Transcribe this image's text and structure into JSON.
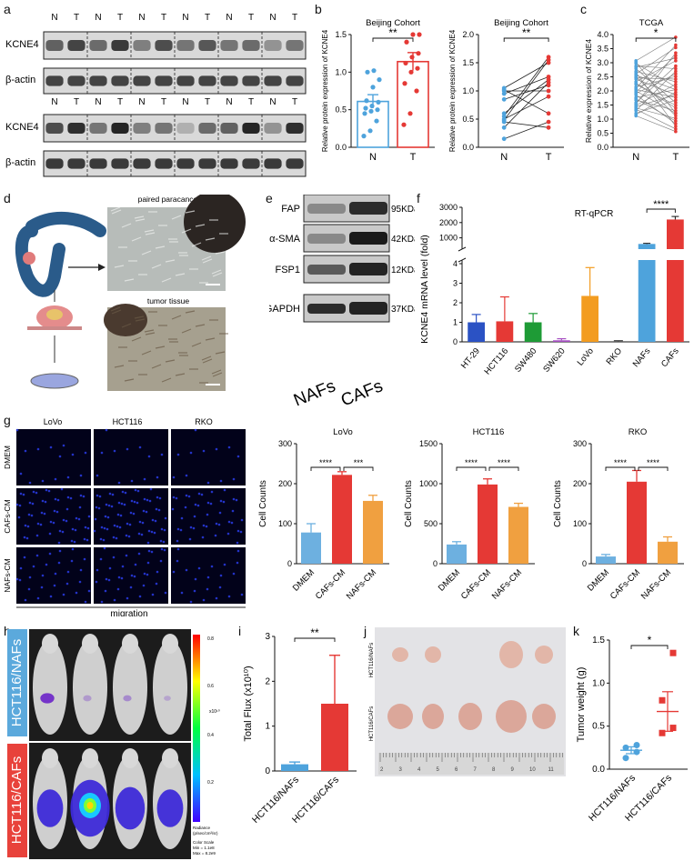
{
  "panels": {
    "a": {
      "letter": "a",
      "lanes": [
        "N",
        "T",
        "N",
        "T",
        "N",
        "T",
        "N",
        "T",
        "N",
        "T",
        "N",
        "T"
      ],
      "rows": [
        "KCNE4",
        "β-actin",
        "KCNE4",
        "β-actin"
      ]
    },
    "b": {
      "letter": "b"
    },
    "c": {
      "letter": "c"
    },
    "d": {
      "letter": "d",
      "top_label": "paired paracancerous tissue",
      "bottom_label": "tumor tissue"
    },
    "e": {
      "letter": "e",
      "proteins": [
        "FAP",
        "α-SMA",
        "FSP1",
        "GAPDH"
      ],
      "sizes": [
        "95KDa",
        "42KDa",
        "12KDa",
        "37KDa"
      ],
      "lanes": [
        "NAFs",
        "CAFs"
      ]
    },
    "f": {
      "letter": "f"
    },
    "g": {
      "letter": "g",
      "columns": [
        "LoVo",
        "HCT116",
        "RKO"
      ],
      "rows": [
        "DMEM",
        "CAFs-CM",
        "NAFs-CM"
      ],
      "footer": "migration"
    },
    "h": {
      "letter": "h",
      "group_top": "HCT116/NAFs",
      "group_bottom": "HCT116/CAFs",
      "scale_ticks": [
        "0.8",
        "0.6",
        "0.4",
        "0.2"
      ],
      "scale_unit": "x10¹⁰",
      "scale_legend": [
        "Radiance",
        "(p/sec/cm²/sr)",
        "Color Scale",
        "Min = 1.1e8",
        "Max = 8.2e9"
      ],
      "colors": {
        "top_band": "#5ba9dc",
        "bottom_band": "#e8423b"
      }
    },
    "i": {
      "letter": "i"
    },
    "j": {
      "letter": "j",
      "row_top": "HCT116/NAFs",
      "row_bottom": "HCT116/CAFs"
    },
    "k": {
      "letter": "k"
    }
  },
  "chart_data": [
    {
      "id": "b1",
      "type": "bar",
      "title": "Beijing Cohort",
      "ylabel": "Relative protein expression of KCNE4",
      "categories": [
        "N",
        "T"
      ],
      "values": [
        0.61,
        1.14
      ],
      "errors": [
        0.09,
        0.12
      ],
      "ylim": [
        0,
        1.5
      ],
      "yticks": [
        "0.0",
        "0.5",
        "1.0",
        "1.5"
      ],
      "points": [
        [
          0.15,
          0.22,
          0.35,
          0.45,
          0.48,
          0.5,
          0.52,
          0.55,
          0.6,
          0.62,
          0.8,
          0.9,
          1.0,
          1.02
        ],
        [
          0.3,
          0.45,
          0.75,
          0.85,
          1.0,
          1.05,
          1.12,
          1.2,
          1.25,
          1.4,
          1.5,
          1.55
        ]
      ],
      "significance": "**",
      "colors": [
        "#4ea3dc",
        "#e53935"
      ]
    },
    {
      "id": "b2",
      "type": "paired",
      "title": "Beijing Cohort",
      "ylabel": "Relative protein expression of KCNE4",
      "categories": [
        "N",
        "T"
      ],
      "ylim": [
        0,
        2.0
      ],
      "yticks": [
        "0.0",
        "0.5",
        "1.0",
        "1.5",
        "2.0"
      ],
      "pairs": [
        [
          0.15,
          0.45
        ],
        [
          0.35,
          1.15
        ],
        [
          0.45,
          0.35
        ],
        [
          0.48,
          1.55
        ],
        [
          0.5,
          0.9
        ],
        [
          0.55,
          1.6
        ],
        [
          0.6,
          1.2
        ],
        [
          0.85,
          1.1
        ],
        [
          0.95,
          1.25
        ],
        [
          1.0,
          1.0
        ],
        [
          1.02,
          0.6
        ],
        [
          1.05,
          1.5
        ]
      ],
      "significance": "**",
      "colors": [
        "#4ea3dc",
        "#e53935"
      ]
    },
    {
      "id": "c",
      "type": "paired",
      "title": "TCGA",
      "ylabel": "Relative expression of KCNE4",
      "categories": [
        "N",
        "T"
      ],
      "ylim": [
        0,
        4.3
      ],
      "yticks": [
        "0.0",
        "0.5",
        "1.0",
        "1.5",
        "2.0",
        "2.5",
        "3.0",
        "3.5",
        "4.0"
      ],
      "pairs": [
        [
          1.2,
          0.6
        ],
        [
          1.3,
          1.8
        ],
        [
          1.4,
          2.9
        ],
        [
          1.5,
          1.1
        ],
        [
          1.6,
          2.4
        ],
        [
          1.7,
          3.1
        ],
        [
          1.8,
          1.4
        ],
        [
          1.9,
          2.2
        ],
        [
          2.0,
          0.9
        ],
        [
          2.1,
          3.5
        ],
        [
          2.2,
          1.9
        ],
        [
          2.3,
          2.7
        ],
        [
          2.4,
          1.6
        ],
        [
          2.5,
          3.3
        ],
        [
          2.6,
          2.0
        ],
        [
          2.7,
          1.2
        ],
        [
          2.8,
          3.8
        ],
        [
          2.9,
          2.5
        ],
        [
          3.0,
          1.7
        ],
        [
          3.1,
          3.0
        ],
        [
          3.2,
          2.3
        ],
        [
          3.3,
          4.2
        ],
        [
          1.25,
          2.1
        ],
        [
          1.45,
          0.7
        ],
        [
          1.65,
          3.6
        ],
        [
          1.85,
          1.0
        ],
        [
          2.05,
          2.8
        ],
        [
          2.25,
          3.9
        ],
        [
          2.45,
          1.5
        ],
        [
          2.65,
          2.6
        ],
        [
          2.85,
          0.8
        ],
        [
          3.05,
          3.4
        ],
        [
          3.25,
          1.3
        ],
        [
          1.55,
          2.0
        ],
        [
          2.15,
          1.3
        ],
        [
          2.75,
          2.2
        ]
      ],
      "significance": "*",
      "colors": [
        "#4ea3dc",
        "#e53935"
      ]
    },
    {
      "id": "f",
      "type": "bar",
      "title": "RT-qPCR",
      "ylabel": "KCNE4 mRNA level (fold)",
      "categories": [
        "HT-29",
        "HCT116",
        "SW480",
        "SW620",
        "LoVo",
        "RKO",
        "NAFs",
        "CAFs"
      ],
      "values": [
        1.0,
        1.05,
        1.0,
        0.08,
        2.35,
        0.03,
        600,
        2200
      ],
      "errors": [
        0.4,
        1.25,
        0.45,
        0.08,
        1.45,
        0.03,
        40,
        200
      ],
      "lower_ticks": [
        "0",
        "1",
        "2",
        "3",
        "4"
      ],
      "upper_ticks": [
        "1000",
        "2000",
        "3000"
      ],
      "significance": "****",
      "colors": [
        "#2b52c4",
        "#e53935",
        "#1e9b36",
        "#a64fc2",
        "#f39c20",
        "#444444",
        "#4ea3dc",
        "#e53935"
      ]
    },
    {
      "id": "g1",
      "type": "bar",
      "title": "LoVo",
      "ylabel": "Cell Counts",
      "categories": [
        "DMEM",
        "CAFs-CM",
        "NAFs-CM"
      ],
      "values": [
        78,
        222,
        157
      ],
      "errors": [
        22,
        8,
        14
      ],
      "ylim": [
        0,
        300
      ],
      "yticks": [
        "0",
        "100",
        "200",
        "300"
      ],
      "significance": [
        "****",
        "***"
      ],
      "colors": [
        "#6db0e0",
        "#e53935",
        "#f0a040"
      ]
    },
    {
      "id": "g2",
      "type": "bar",
      "title": "HCT116",
      "ylabel": "Cell Counts",
      "categories": [
        "DMEM",
        "CAFs-CM",
        "NAFs-CM"
      ],
      "values": [
        240,
        990,
        710
      ],
      "errors": [
        35,
        70,
        45
      ],
      "ylim": [
        0,
        1500
      ],
      "yticks": [
        "0",
        "500",
        "1000",
        "1500"
      ],
      "significance": [
        "****",
        "****"
      ],
      "colors": [
        "#6db0e0",
        "#e53935",
        "#f0a040"
      ]
    },
    {
      "id": "g3",
      "type": "bar",
      "title": "RKO",
      "ylabel": "Cell Counts",
      "categories": [
        "DMEM",
        "CAFs-CM",
        "NAFs-CM"
      ],
      "values": [
        18,
        205,
        55
      ],
      "errors": [
        5,
        28,
        12
      ],
      "ylim": [
        0,
        300
      ],
      "yticks": [
        "0",
        "100",
        "200",
        "300"
      ],
      "significance": [
        "****",
        "****"
      ],
      "colors": [
        "#6db0e0",
        "#e53935",
        "#f0a040"
      ]
    },
    {
      "id": "i",
      "type": "bar",
      "title": "",
      "ylabel": "Total Flux (x10¹⁰)",
      "categories": [
        "HCT116/NAFs",
        "HCT116/CAFs"
      ],
      "values": [
        0.15,
        1.5
      ],
      "errors": [
        0.05,
        1.08
      ],
      "ylim": [
        0,
        3
      ],
      "yticks": [
        "0",
        "1",
        "2",
        "3"
      ],
      "significance": "**",
      "colors": [
        "#4ea3dc",
        "#e53935"
      ]
    },
    {
      "id": "k",
      "type": "scatter",
      "title": "",
      "ylabel": "Tumor weight (g)",
      "categories": [
        "HCT116/NAFs",
        "HCT116/CAFs"
      ],
      "points": [
        [
          0.13,
          0.2,
          0.25,
          0.28
        ],
        [
          0.42,
          0.48,
          0.8,
          1.35
        ]
      ],
      "means": [
        0.22,
        0.67
      ],
      "errors": [
        0.04,
        0.23
      ],
      "ylim": [
        0,
        1.5
      ],
      "yticks": [
        "0.0",
        "0.5",
        "1.0",
        "1.5"
      ],
      "significance": "*",
      "colors": [
        "#4ea3dc",
        "#e53935"
      ]
    }
  ]
}
